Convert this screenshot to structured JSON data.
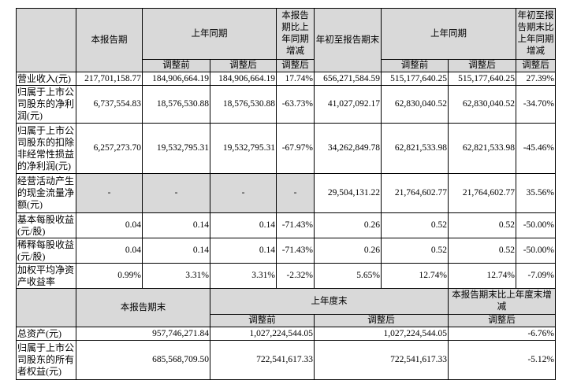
{
  "table1": {
    "headers": {
      "current_period": "本报告期",
      "prior_year_same_period": "上年同期",
      "change_yoy": "本报告期比上年同期增减",
      "ytd": "年初至报告期末",
      "prior_ytd": "上年同期",
      "ytd_change": "年初至报告期末比上年同期增减",
      "before_adjust": "调整前",
      "after_adjust": "调整后"
    },
    "rows": [
      {
        "label": "营业收入(元)",
        "values": [
          "217,701,158.77",
          "184,906,664.19",
          "184,906,664.19",
          "17.74%",
          "656,271,584.59",
          "515,177,640.25",
          "515,177,640.25",
          "27.39%"
        ]
      },
      {
        "label": "归属于上市公司股东的净利润(元)",
        "values": [
          "6,737,554.83",
          "18,576,530.88",
          "18,576,530.88",
          "-63.73%",
          "41,027,092.17",
          "62,830,040.52",
          "62,830,040.52",
          "-34.70%"
        ]
      },
      {
        "label": "归属于上市公司股东的扣除非经常性损益的净利润(元)",
        "values": [
          "6,257,273.70",
          "19,532,795.31",
          "19,532,795.31",
          "-67.97%",
          "34,262,849.78",
          "62,821,533.98",
          "62,821,533.98",
          "-45.46%"
        ]
      },
      {
        "label": "经营活动产生的现金流量净额(元)",
        "values": [
          "-",
          "-",
          "-",
          "-",
          "29,504,131.22",
          "21,764,602.77",
          "21,764,602.77",
          "35.56%"
        ]
      },
      {
        "label": "基本每股收益(元/股)",
        "values": [
          "0.04",
          "0.14",
          "0.14",
          "-71.43%",
          "0.26",
          "0.52",
          "0.52",
          "-50.00%"
        ]
      },
      {
        "label": "稀释每股收益(元/股)",
        "values": [
          "0.04",
          "0.14",
          "0.14",
          "-71.43%",
          "0.26",
          "0.52",
          "0.52",
          "-50.00%"
        ]
      },
      {
        "label": "加权平均净资产收益率",
        "values": [
          "0.99%",
          "3.31%",
          "3.31%",
          "-2.32%",
          "5.65%",
          "12.74%",
          "12.74%",
          "-7.09%"
        ]
      }
    ]
  },
  "table2": {
    "headers": {
      "period_end": "本报告期末",
      "prior_year_end": "上年度末",
      "change": "本报告期末比上年度末增减",
      "before_adjust": "调整前",
      "after_adjust": "调整后",
      "change_adjusted": "调整后"
    },
    "rows": [
      {
        "label": "总资产(元)",
        "values": [
          "957,746,271.84",
          "1,027,224,544.05",
          "1,027,224,544.05",
          "-6.76%"
        ]
      },
      {
        "label": "归属于上市公司股东的所有者权益(元)",
        "values": [
          "685,568,709.50",
          "722,541,617.33",
          "722,541,617.33",
          "-5.12%"
        ]
      }
    ]
  }
}
